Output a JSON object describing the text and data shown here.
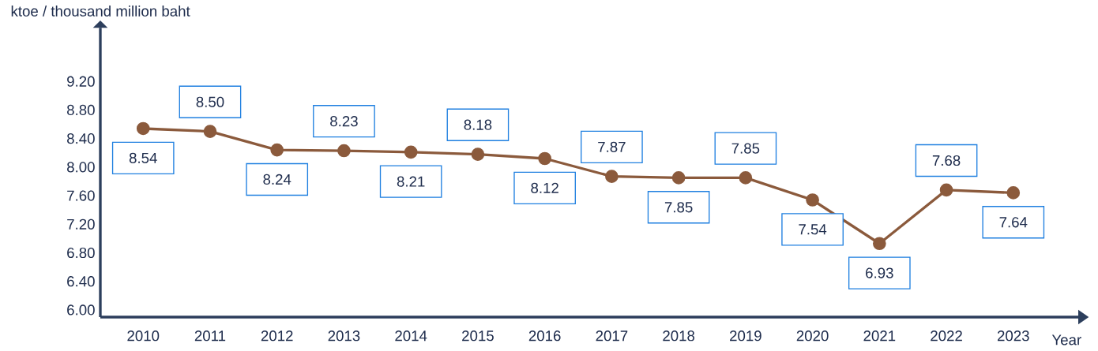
{
  "chart_data": {
    "type": "line",
    "xlabel": "Year",
    "ylabel": "ktoe / thousand million baht",
    "categories": [
      "2010",
      "2011",
      "2012",
      "2013",
      "2014",
      "2015",
      "2016",
      "2017",
      "2018",
      "2019",
      "2020",
      "2021",
      "2022",
      "2023"
    ],
    "series": [
      {
        "color": "#8b5a3c",
        "values": [
          8.54,
          8.5,
          8.24,
          8.23,
          8.21,
          8.18,
          8.12,
          7.87,
          7.85,
          7.85,
          7.54,
          6.93,
          7.68,
          7.64
        ],
        "value_labels": [
          "8.54",
          "8.50",
          "8.24",
          "8.23",
          "8.21",
          "8.18",
          "8.12",
          "7.87",
          "7.85",
          "7.85",
          "7.54",
          "6.93",
          "7.68",
          "7.64"
        ]
      }
    ],
    "ylim": [
      5.9,
      9.95
    ],
    "yticks": [
      {
        "value": 6.0,
        "label": "6.00"
      },
      {
        "value": 6.4,
        "label": "6.40"
      },
      {
        "value": 6.8,
        "label": "6.80"
      },
      {
        "value": 7.2,
        "label": "7.20"
      },
      {
        "value": 7.6,
        "label": "7.60"
      },
      {
        "value": 8.0,
        "label": "8.00"
      },
      {
        "value": 8.4,
        "label": "8.40"
      },
      {
        "value": 8.8,
        "label": "8.80"
      },
      {
        "value": 9.2,
        "label": "9.20"
      }
    ],
    "grid": false,
    "marker": "circle",
    "line_style": "solid"
  }
}
